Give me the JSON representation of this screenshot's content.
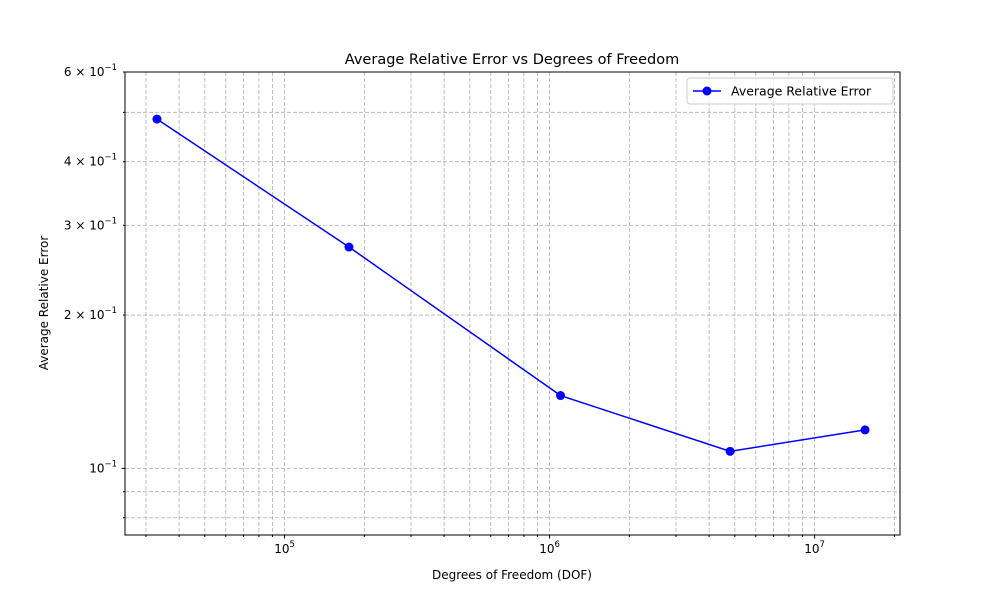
{
  "chart_data": {
    "type": "line",
    "title": "Average Relative Error vs Degrees of Freedom",
    "xlabel": "Degrees of Freedom (DOF)",
    "ylabel": "Average Relative Error",
    "xscale": "log",
    "yscale": "log",
    "xlim": [
      25000,
      21000000
    ],
    "ylim": [
      0.074,
      0.6
    ],
    "grid": "major-and-minor",
    "legend_placement": "top-right",
    "x_ticks": [
      {
        "value": 100000,
        "base": "10",
        "exp": "5"
      },
      {
        "value": 1000000,
        "base": "10",
        "exp": "6"
      },
      {
        "value": 10000000,
        "base": "10",
        "exp": "7"
      }
    ],
    "y_ticks": [
      {
        "value": 0.1,
        "mant": "",
        "base": "10",
        "exp": "−1"
      },
      {
        "value": 0.2,
        "mant": "2 × ",
        "base": "10",
        "exp": "−1"
      },
      {
        "value": 0.3,
        "mant": "3 × ",
        "base": "10",
        "exp": "−1"
      },
      {
        "value": 0.4,
        "mant": "4 × ",
        "base": "10",
        "exp": "−1"
      },
      {
        "value": 0.6,
        "mant": "6 × ",
        "base": "10",
        "exp": "−1"
      }
    ],
    "series": [
      {
        "name": "Average Relative Error",
        "color": "#0000ff",
        "marker": "circle",
        "x": [
          33000,
          175000,
          1100000,
          4800000,
          15500000
        ],
        "y": [
          0.485,
          0.272,
          0.139,
          0.108,
          0.119
        ]
      }
    ]
  }
}
